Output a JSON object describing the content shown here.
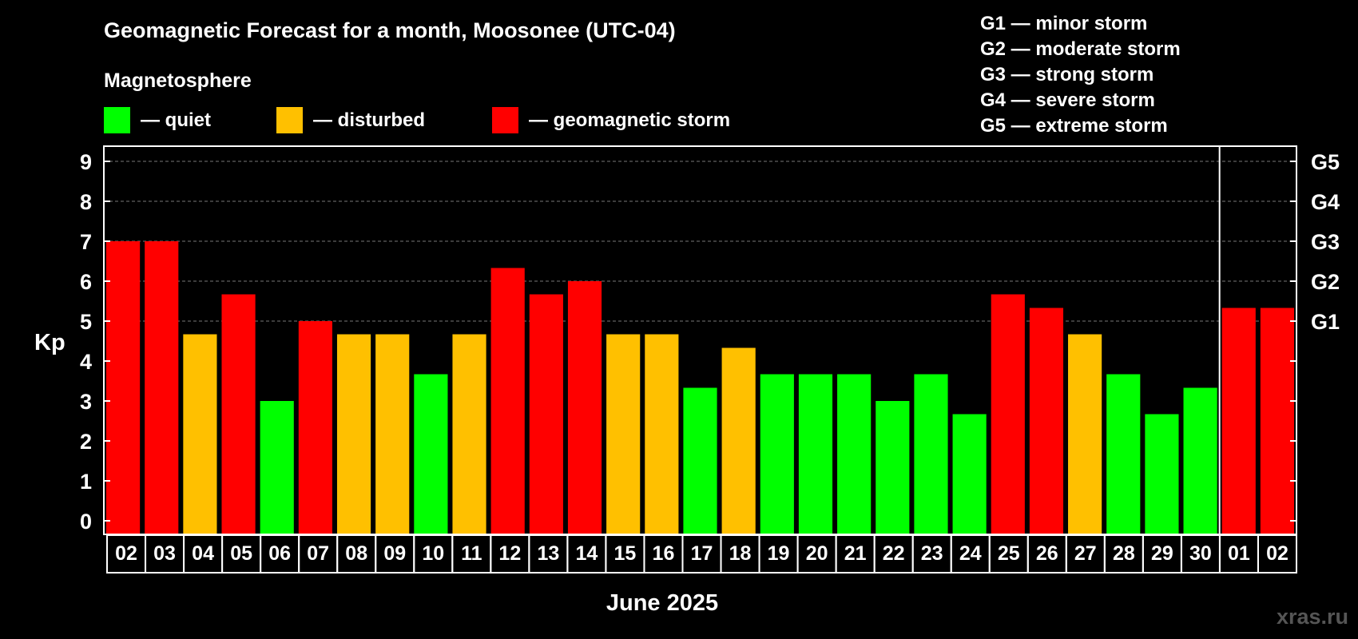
{
  "chart_data": {
    "type": "bar",
    "title": "Geomagnetic Forecast for a month, Moosonee (UTC-04)",
    "subtitle": "Magnetosphere",
    "ylabel": "Kp",
    "xlabel": "June 2025",
    "ylim": [
      0,
      9
    ],
    "yticks": [
      "0",
      "1",
      "2",
      "3",
      "4",
      "5",
      "6",
      "7",
      "8",
      "9"
    ],
    "right_ticks": [
      {
        "kp": 5,
        "label": "G1"
      },
      {
        "kp": 6,
        "label": "G2"
      },
      {
        "kp": 7,
        "label": "G3"
      },
      {
        "kp": 8,
        "label": "G4"
      },
      {
        "kp": 9,
        "label": "G5"
      }
    ],
    "categories": [
      "02",
      "03",
      "04",
      "05",
      "06",
      "07",
      "08",
      "09",
      "10",
      "11",
      "12",
      "13",
      "14",
      "15",
      "16",
      "17",
      "18",
      "19",
      "20",
      "21",
      "22",
      "23",
      "24",
      "25",
      "26",
      "27",
      "28",
      "29",
      "30",
      "01",
      "02"
    ],
    "values": [
      7,
      7,
      4.67,
      5.67,
      3,
      5,
      4.67,
      4.67,
      3.67,
      4.67,
      6.33,
      5.67,
      6,
      4.67,
      4.67,
      3.33,
      4.33,
      3.67,
      3.67,
      3.67,
      3,
      3.67,
      2.67,
      5.67,
      5.33,
      4.67,
      3.67,
      2.67,
      3.33,
      5.33,
      5.33
    ],
    "levels": [
      "storm",
      "storm",
      "disturbed",
      "storm",
      "quiet",
      "storm",
      "disturbed",
      "disturbed",
      "quiet",
      "disturbed",
      "storm",
      "storm",
      "storm",
      "disturbed",
      "disturbed",
      "quiet",
      "disturbed",
      "quiet",
      "quiet",
      "quiet",
      "quiet",
      "quiet",
      "quiet",
      "storm",
      "storm",
      "disturbed",
      "quiet",
      "quiet",
      "quiet",
      "storm",
      "storm"
    ],
    "month_break_after_index": 28,
    "legend": [
      {
        "key": "quiet",
        "label": "— quiet",
        "color": "#00ff00"
      },
      {
        "key": "disturbed",
        "label": "— disturbed",
        "color": "#ffc000"
      },
      {
        "key": "storm",
        "label": "— geomagnetic storm",
        "color": "#ff0000"
      }
    ],
    "g_scale": [
      "G1 — minor storm",
      "G2 — moderate storm",
      "G3 — strong storm",
      "G4 — severe storm",
      "G5 — extreme storm"
    ],
    "watermark": "xras.ru"
  }
}
